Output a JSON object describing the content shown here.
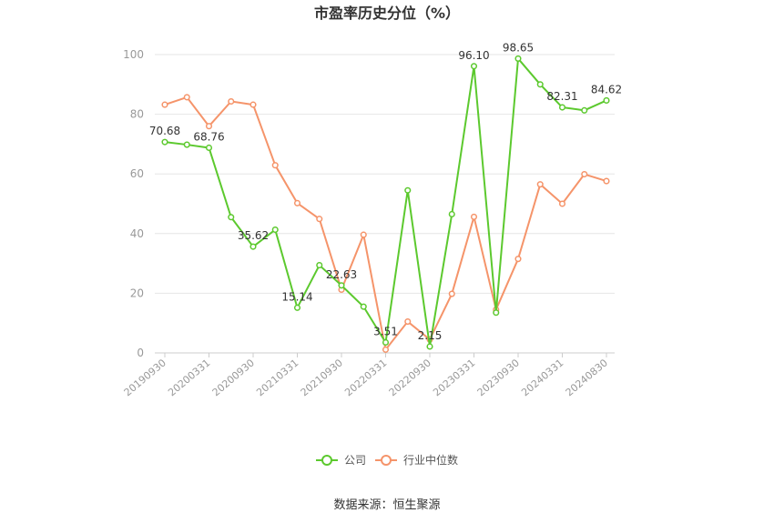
{
  "chart_data": {
    "type": "line",
    "title": "市盈率历史分位（%）",
    "xlabel": "",
    "ylabel": "",
    "ylim": [
      0,
      100
    ],
    "yticks": [
      0,
      20,
      40,
      60,
      80,
      100
    ],
    "x": [
      "20190930",
      "20191231",
      "20200331",
      "20200630",
      "20200930",
      "20201231",
      "20210331",
      "20210630",
      "20210930",
      "20211231",
      "20220331",
      "20220630",
      "20220930",
      "20221231",
      "20230331",
      "20230630",
      "20230930",
      "20231231",
      "20240331",
      "20240630",
      "20240830"
    ],
    "xtick_labels": [
      "20190930",
      "20200331",
      "20200930",
      "20210331",
      "20210930",
      "20220331",
      "20220930",
      "20230331",
      "20230930",
      "20240331",
      "20240830"
    ],
    "series": [
      {
        "name": "公司",
        "color": "#5cc92e",
        "values": [
          70.68,
          69.8,
          68.76,
          45.5,
          35.62,
          41.3,
          15.14,
          29.4,
          22.63,
          15.5,
          3.51,
          54.5,
          2.15,
          46.5,
          96.1,
          13.5,
          98.65,
          90.0,
          82.31,
          81.3,
          84.62
        ],
        "labels": {
          "0": "70.68",
          "2": "68.76",
          "4": "35.62",
          "6": "15.14",
          "8": "22.63",
          "10": "3.51",
          "12": "2.15",
          "14": "96.10",
          "16": "98.65",
          "18": "82.31",
          "20": "84.62"
        }
      },
      {
        "name": "行业中位数",
        "color": "#f5946a",
        "values": [
          83.2,
          85.7,
          76.0,
          84.3,
          83.2,
          62.9,
          50.2,
          44.9,
          21.2,
          39.6,
          1.1,
          10.5,
          4.5,
          19.8,
          45.6,
          14.5,
          31.5,
          56.5,
          50.0,
          59.9,
          57.6
        ]
      }
    ],
    "grid": true,
    "legend_position": "bottom-center"
  },
  "source_text": "数据来源：恒生聚源"
}
